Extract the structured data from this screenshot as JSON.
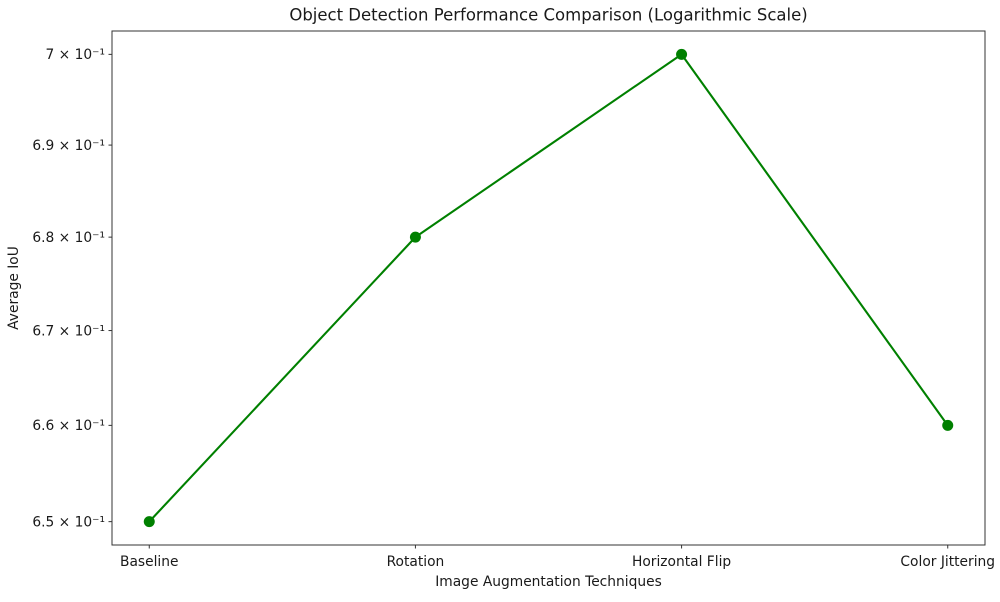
{
  "chart_data": {
    "type": "line",
    "title": "Object Detection Performance Comparison (Logarithmic Scale)",
    "xlabel": "Image Augmentation Techniques",
    "ylabel": "Average IoU",
    "categories": [
      "Baseline",
      "Rotation",
      "Horizontal Flip",
      "Color Jittering"
    ],
    "series": [
      {
        "name": "Average IoU",
        "values": [
          0.65,
          0.68,
          0.7,
          0.66
        ]
      }
    ],
    "yscale": "log",
    "ylim_approx": [
      0.648,
      0.702
    ],
    "ytick_values": [
      0.65,
      0.66,
      0.67,
      0.68,
      0.69,
      0.7
    ],
    "ytick_labels": [
      "6.5 × 10⁻¹",
      "6.6 × 10⁻¹",
      "6.7 × 10⁻¹",
      "6.8 × 10⁻¹",
      "6.9 × 10⁻¹",
      "7 × 10⁻¹"
    ],
    "line_color": "#008000",
    "marker": "circle",
    "marker_color": "#008000",
    "grid": false,
    "legend": "none",
    "background_color": "#ffffff",
    "text_color": "#1a1a1a"
  }
}
